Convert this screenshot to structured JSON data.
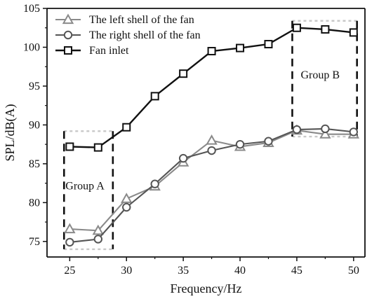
{
  "chart_data": {
    "type": "line",
    "xlabel": "Frequency/Hz",
    "ylabel": "SPL/dB(A)",
    "xlim": [
      23,
      51
    ],
    "ylim": [
      73,
      105
    ],
    "x_ticks": [
      25,
      30,
      35,
      40,
      45,
      50
    ],
    "y_ticks": [
      75,
      80,
      85,
      90,
      95,
      100,
      105
    ],
    "x": [
      25,
      27.5,
      30,
      32.5,
      35,
      37.5,
      40,
      42.5,
      45,
      47.5,
      50
    ],
    "series": [
      {
        "name": "The left shell of the fan",
        "marker": "triangle",
        "color": "#8a8a8a",
        "values": [
          76.6,
          76.4,
          80.5,
          82.1,
          85.2,
          88.0,
          87.2,
          87.7,
          89.3,
          88.8,
          88.8
        ]
      },
      {
        "name": "The right shell of the fan",
        "marker": "circle",
        "color": "#555555",
        "values": [
          74.9,
          75.3,
          79.4,
          82.4,
          85.7,
          86.7,
          87.5,
          87.9,
          89.4,
          89.5,
          89.1
        ]
      },
      {
        "name": "Fan inlet",
        "marker": "square",
        "color": "#111111",
        "values": [
          87.2,
          87.1,
          89.7,
          93.7,
          96.6,
          99.5,
          99.9,
          100.4,
          102.5,
          102.3,
          101.9
        ]
      }
    ],
    "legend_position": "top-left",
    "annotations": [
      {
        "label": "Group A",
        "x_range": [
          24.5,
          28.8
        ],
        "y_range": [
          74.0,
          89.2
        ]
      },
      {
        "label": "Group B",
        "x_range": [
          44.6,
          50.3
        ],
        "y_range": [
          88.5,
          103.4
        ]
      }
    ],
    "grid": false
  }
}
